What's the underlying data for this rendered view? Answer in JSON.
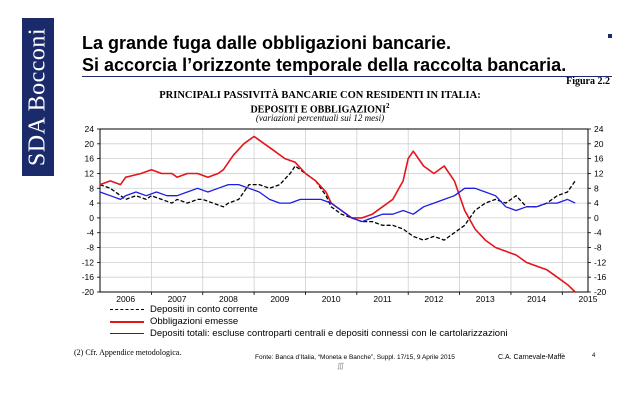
{
  "brand": {
    "name": "SDA Bocconi",
    "color": "#1b2a6b"
  },
  "slide": {
    "title_line1": "La grande fuga dalle obbligazioni bancarie.",
    "title_line2": "Si accorcia l’orizzonte temporale della raccolta bancaria.",
    "figure_label": "Figura 2.2",
    "footnote": "(2) Cfr. Appendice metodologica.",
    "source": "Fonte: Banca d’Italia, “Moneta e Banche”, Suppl. 17/15, 9 Aprile 2015",
    "author": "C.A. Carnevale-Maffè",
    "page_number": "4"
  },
  "chart_data": {
    "type": "line",
    "title": "PRINCIPALI PASSIVITÀ BANCARIE CON RESIDENTI IN ITALIA:",
    "subtitle": "DEPOSITI E OBBLIGAZIONI",
    "subtitle_superscript": "2",
    "note": "(variazioni percentuali sui 12 mesi)",
    "xlim": [
      2005.5,
      2015.0
    ],
    "x_ticks": [
      "2006",
      "2007",
      "2008",
      "2009",
      "2010",
      "2011",
      "2012",
      "2013",
      "2014",
      "2015"
    ],
    "x_tick_positions": [
      2006,
      2007,
      2008,
      2009,
      2010,
      2011,
      2012,
      2013,
      2014,
      2015
    ],
    "ylim": [
      -20,
      24
    ],
    "left_ticks": [
      "24",
      "20",
      "16",
      "12",
      "8",
      "4",
      "0",
      "-4",
      "-8",
      "-12",
      "-16",
      "-20"
    ],
    "right_ticks": [
      "24",
      "20",
      "16",
      "12",
      "8",
      "4",
      "0",
      "-4",
      "-8",
      "-12",
      "-16",
      "-20"
    ],
    "series": [
      {
        "name": "Depositi in conto corrente",
        "color": "#000000",
        "dash": "dashed",
        "x": [
          2005.5,
          2005.7,
          2005.9,
          2006.0,
          2006.2,
          2006.4,
          2006.5,
          2006.7,
          2006.9,
          2007.0,
          2007.2,
          2007.4,
          2007.5,
          2007.7,
          2007.9,
          2008.0,
          2008.2,
          2008.4,
          2008.6,
          2008.8,
          2009.0,
          2009.2,
          2009.3,
          2009.5,
          2009.7,
          2009.9,
          2010.0,
          2010.2,
          2010.4,
          2010.6,
          2010.8,
          2011.0,
          2011.2,
          2011.4,
          2011.6,
          2011.8,
          2012.0,
          2012.2,
          2012.4,
          2012.6,
          2012.8,
          2013.0,
          2013.2,
          2013.4,
          2013.6,
          2013.8,
          2014.0,
          2014.2,
          2014.4,
          2014.6,
          2014.75
        ],
        "y": [
          9,
          8,
          6,
          5,
          6,
          5,
          6,
          5,
          4,
          5,
          4,
          5,
          5,
          4,
          3,
          4,
          5,
          9,
          9,
          8,
          9,
          12,
          14,
          12,
          10,
          6,
          3,
          1,
          0,
          -1,
          -1,
          -2,
          -2,
          -3,
          -5,
          -6,
          -5,
          -6,
          -4,
          -2,
          2,
          4,
          5,
          4,
          6,
          3,
          3,
          4,
          6,
          7,
          10
        ]
      },
      {
        "name": "Obbligazioni emesse",
        "color": "#e4141b",
        "dash": "solid",
        "x": [
          2005.5,
          2005.7,
          2005.9,
          2006.0,
          2006.3,
          2006.5,
          2006.7,
          2006.9,
          2007.0,
          2007.2,
          2007.4,
          2007.6,
          2007.8,
          2007.9,
          2008.0,
          2008.1,
          2008.3,
          2008.5,
          2008.7,
          2008.9,
          2009.1,
          2009.3,
          2009.5,
          2009.7,
          2009.9,
          2010.0,
          2010.2,
          2010.4,
          2010.6,
          2010.8,
          2011.0,
          2011.2,
          2011.4,
          2011.5,
          2011.6,
          2011.8,
          2012.0,
          2012.2,
          2012.4,
          2012.6,
          2012.8,
          2013.0,
          2013.2,
          2013.4,
          2013.6,
          2013.8,
          2014.0,
          2014.2,
          2014.4,
          2014.6,
          2014.75
        ],
        "y": [
          9,
          10,
          9,
          11,
          12,
          13,
          12,
          12,
          11,
          12,
          12,
          11,
          12,
          13,
          15,
          17,
          20,
          22,
          20,
          18,
          16,
          15,
          12,
          10,
          7,
          4,
          2,
          0,
          0,
          1,
          3,
          5,
          10,
          16,
          18,
          14,
          12,
          14,
          10,
          2,
          -3,
          -6,
          -8,
          -9,
          -10,
          -12,
          -13,
          -14,
          -16,
          -18,
          -20
        ]
      },
      {
        "name": "Depositi totali: escluse controparti centrali e depositi connessi con le cartolarizzazioni",
        "color": "#1c1ce6",
        "dash": "solid",
        "x": [
          2005.5,
          2005.7,
          2005.9,
          2006.0,
          2006.2,
          2006.4,
          2006.6,
          2006.8,
          2007.0,
          2007.2,
          2007.4,
          2007.6,
          2007.8,
          2008.0,
          2008.2,
          2008.4,
          2008.6,
          2008.8,
          2009.0,
          2009.2,
          2009.4,
          2009.6,
          2009.8,
          2010.0,
          2010.2,
          2010.4,
          2010.6,
          2010.8,
          2011.0,
          2011.2,
          2011.4,
          2011.6,
          2011.8,
          2012.0,
          2012.2,
          2012.4,
          2012.6,
          2012.8,
          2013.0,
          2013.2,
          2013.4,
          2013.6,
          2013.8,
          2014.0,
          2014.2,
          2014.4,
          2014.6,
          2014.75
        ],
        "y": [
          7,
          6,
          5,
          6,
          7,
          6,
          7,
          6,
          6,
          7,
          8,
          7,
          8,
          9,
          9,
          8,
          7,
          5,
          4,
          4,
          5,
          5,
          5,
          4,
          2,
          0,
          -1,
          0,
          1,
          1,
          2,
          1,
          3,
          4,
          5,
          6,
          8,
          8,
          7,
          6,
          3,
          2,
          3,
          3,
          4,
          4,
          5,
          4
        ]
      }
    ]
  }
}
